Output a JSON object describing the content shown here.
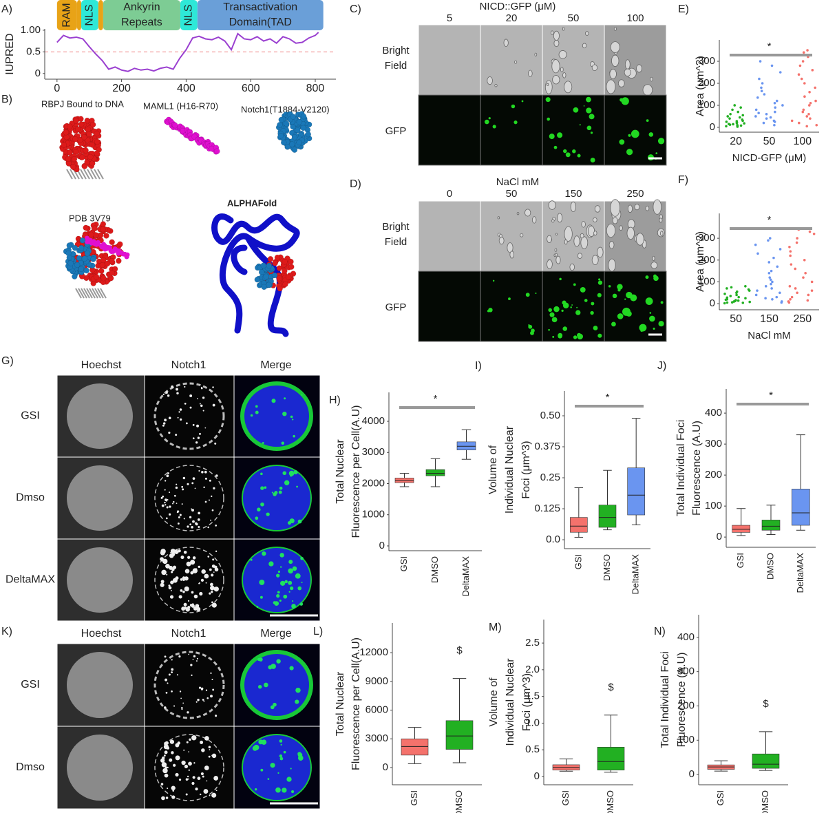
{
  "figure": {
    "panel_labels": [
      "A)",
      "B)",
      "C)",
      "D)",
      "E)",
      "F)",
      "G)",
      "H)",
      "I)",
      "J)",
      "K)",
      "L)",
      "M)",
      "N)"
    ],
    "structures": {
      "rbpj": "RBPJ Bound to DNA",
      "maml1": "MAML1 (H16-R70)",
      "notch1": "Notch1(T1884-V2120)",
      "pdb": "PDB 3V79",
      "alphafold": "ALPHAFold"
    },
    "panel_c": {
      "title": "NICD::GFP (μM)",
      "columns": [
        "5",
        "20",
        "50",
        "100"
      ],
      "rows": [
        [
          "Bright",
          "Field"
        ],
        [
          "GFP"
        ]
      ]
    },
    "panel_d": {
      "title": "NaCl mM",
      "columns": [
        "0",
        "50",
        "150",
        "250"
      ],
      "rows": [
        [
          "Bright",
          "Field"
        ],
        [
          "GFP"
        ]
      ]
    },
    "panel_g": {
      "columns": [
        "Hoechst",
        "Notch1",
        "Merge"
      ],
      "column_colors": [
        "#2233dd",
        "#22bb22",
        "#111111"
      ],
      "rows": [
        "GSI",
        "Dmso",
        "DeltaMAX"
      ]
    },
    "panel_k": {
      "columns": [
        "Hoechst",
        "Notch1",
        "Merge"
      ],
      "column_colors": [
        "#2233dd",
        "#22bb22",
        "#111111"
      ],
      "rows": [
        "GSI",
        "Dmso"
      ]
    }
  },
  "chart_data": [
    {
      "type": "line",
      "ylabel": "IUPRED",
      "color": "#9a3fd0",
      "threshold": 0.5,
      "threshold_color": "#f08080",
      "domains": [
        {
          "name": [
            "RAM"
          ],
          "start": 0,
          "end": 62,
          "color": "#e8a317"
        },
        {
          "start": 62,
          "end": 75,
          "color": "#e8a317"
        },
        {
          "name": [
            "NLS"
          ],
          "start": 75,
          "end": 128,
          "color": "#2ee8d8"
        },
        {
          "start": 128,
          "end": 143,
          "color": "#e8a317"
        },
        {
          "name": [
            "Ankyrin",
            "Repeats"
          ],
          "start": 143,
          "end": 382,
          "color": "#7dcc94"
        },
        {
          "name": [
            "NLS"
          ],
          "start": 382,
          "end": 435,
          "color": "#2ee8d8"
        },
        {
          "name": [
            "Transactivation",
            "Domain(TAD"
          ],
          "start": 435,
          "end": 825,
          "color": "#6a9fd8"
        }
      ],
      "x": [
        0,
        20,
        40,
        60,
        80,
        100,
        120,
        140,
        160,
        180,
        200,
        220,
        240,
        260,
        280,
        300,
        320,
        340,
        360,
        380,
        400,
        420,
        440,
        460,
        480,
        500,
        520,
        540,
        560,
        580,
        600,
        620,
        640,
        660,
        680,
        700,
        720,
        740,
        760,
        780,
        800,
        810
      ],
      "values": [
        0.72,
        0.88,
        0.82,
        0.84,
        0.8,
        0.62,
        0.45,
        0.3,
        0.1,
        0.15,
        0.08,
        0.05,
        0.12,
        0.08,
        0.1,
        0.06,
        0.12,
        0.15,
        0.1,
        0.35,
        0.55,
        0.82,
        0.86,
        0.8,
        0.78,
        0.84,
        0.75,
        0.55,
        0.92,
        0.8,
        0.78,
        0.85,
        0.75,
        0.8,
        0.7,
        0.85,
        0.8,
        0.7,
        0.72,
        0.82,
        0.88,
        0.95
      ],
      "xlim": [
        -38,
        864
      ],
      "xticks": [
        0,
        200,
        400,
        600,
        800
      ],
      "ylim": [
        -0.13,
        1.03
      ],
      "yticks": [
        0,
        0.5,
        {
          "value": 1,
          "label": "1.00"
        }
      ]
    },
    {
      "type": "strip",
      "ylabel": "Area (μm^2)",
      "xlabel": "NICD-GFP (μM)",
      "annotation": "*",
      "categories": [
        "20",
        "50",
        "100"
      ],
      "series": [
        {
          "color": "#22b022",
          "values": [
            3,
            5,
            6,
            8,
            10,
            12,
            14,
            15,
            18,
            20,
            22,
            25,
            28,
            30,
            35,
            40,
            45,
            50,
            55,
            60,
            70,
            80,
            90,
            100
          ]
        },
        {
          "color": "#6a95f0",
          "values": [
            10,
            20,
            25,
            30,
            40,
            45,
            50,
            60,
            65,
            70,
            80,
            90,
            100,
            110,
            120,
            135,
            150,
            165,
            180,
            200,
            220,
            250,
            280,
            300
          ]
        },
        {
          "color": "#f4726c",
          "values": [
            5,
            10,
            20,
            30,
            40,
            50,
            60,
            70,
            80,
            100,
            110,
            120,
            140,
            160,
            180,
            200,
            220,
            240,
            260,
            280,
            300,
            320,
            340,
            350
          ]
        }
      ],
      "ylim": [
        -22,
        397
      ],
      "yticks": [
        0,
        100,
        200,
        300
      ]
    },
    {
      "type": "strip",
      "ylabel": "Area (μm^2)",
      "xlabel": "NaCl mM",
      "annotation": "*",
      "categories": [
        "50",
        "150",
        "250"
      ],
      "series": [
        {
          "color": "#22b022",
          "values": [
            2,
            4,
            5,
            6,
            8,
            10,
            12,
            14,
            16,
            18,
            20,
            25,
            28,
            30,
            35,
            40,
            45,
            50,
            55,
            60,
            65,
            70,
            75,
            80
          ]
        },
        {
          "color": "#6a95f0",
          "values": [
            5,
            10,
            20,
            25,
            30,
            40,
            50,
            60,
            70,
            80,
            90,
            100,
            110,
            120,
            140,
            150,
            170,
            190,
            210,
            230,
            250,
            270,
            290,
            300
          ]
        },
        {
          "color": "#f4726c",
          "values": [
            5,
            10,
            15,
            20,
            30,
            40,
            50,
            60,
            70,
            80,
            100,
            120,
            140,
            160,
            180,
            200,
            220,
            240,
            260,
            280,
            300,
            320,
            330,
            340
          ]
        }
      ],
      "ylim": [
        -28,
        414
      ],
      "yticks": [
        0,
        100,
        200,
        300
      ]
    },
    {
      "type": "box",
      "ylabel": [
        "Total Nuclear",
        "Fluorescence per Cell(A.U)"
      ],
      "annotation": "*",
      "categories": [
        "GSI",
        "DMSO",
        "DeltaMAX"
      ],
      "boxes": [
        {
          "color": "#f4726c",
          "min": 1900,
          "q1": 2030,
          "median": 2100,
          "q3": 2180,
          "max": 2330
        },
        {
          "color": "#22b022",
          "min": 1900,
          "q1": 2250,
          "median": 2330,
          "q3": 2450,
          "max": 2800
        },
        {
          "color": "#6a95f0",
          "min": 2780,
          "q1": 3080,
          "median": 3200,
          "q3": 3340,
          "max": 3730
        }
      ],
      "ylim": [
        -155,
        4928
      ],
      "yticks": [
        0,
        1000,
        2000,
        3000,
        4000
      ]
    },
    {
      "type": "box",
      "ylabel": [
        "Volume of",
        "Individual Nuclear",
        "Foci (μm^3)"
      ],
      "annotation": "*",
      "categories": [
        "GSI",
        "DMSO",
        "DeltaMAX"
      ],
      "boxes": [
        {
          "color": "#f4726c",
          "min": 0.01,
          "q1": 0.03,
          "median": 0.055,
          "q3": 0.09,
          "max": 0.21
        },
        {
          "color": "#22b022",
          "min": 0.04,
          "q1": 0.05,
          "median": 0.09,
          "q3": 0.14,
          "max": 0.28
        },
        {
          "color": "#6a95f0",
          "min": 0.06,
          "q1": 0.1,
          "median": 0.18,
          "q3": 0.29,
          "max": 0.49
        }
      ],
      "ylim": [
        -0.036,
        0.6
      ],
      "yticks": [
        {
          "value": 0,
          "label": "0.0"
        },
        0.125,
        0.25,
        0.375,
        {
          "value": 0.5,
          "label": "0.50"
        }
      ]
    },
    {
      "type": "box",
      "ylabel": [
        "Total Individual Foci",
        "Fluorescence (A.U)"
      ],
      "annotation": "*",
      "categories": [
        "GSI",
        "DMSO",
        "DeltaMAX"
      ],
      "boxes": [
        {
          "color": "#f4726c",
          "min": 5,
          "q1": 15,
          "median": 25,
          "q3": 38,
          "max": 92
        },
        {
          "color": "#22b022",
          "min": 8,
          "q1": 22,
          "median": 35,
          "q3": 55,
          "max": 103
        },
        {
          "color": "#6a95f0",
          "min": 22,
          "q1": 38,
          "median": 78,
          "q3": 155,
          "max": 330
        }
      ],
      "ylim": [
        -33,
        478
      ],
      "yticks": [
        0,
        100,
        200,
        300,
        400
      ]
    },
    {
      "type": "box",
      "ylabel": [
        "Total Nuclear",
        "Fluorescence per Cell(A.U)"
      ],
      "annotation": "$",
      "categories": [
        "GSI",
        "DMSO"
      ],
      "boxes": [
        {
          "color": "#f4726c",
          "min": 400,
          "q1": 1300,
          "median": 2200,
          "q3": 3000,
          "max": 4200
        },
        {
          "color": "#22b022",
          "min": 500,
          "q1": 1900,
          "median": 3300,
          "q3": 4900,
          "max": 9300
        }
      ],
      "ylim": [
        -1800,
        15100
      ],
      "yticks": [
        0,
        3000,
        6000,
        9000,
        12000
      ]
    },
    {
      "type": "box",
      "ylabel": [
        "Volume of",
        "Individual Nuclear",
        "Foci (μm^3)"
      ],
      "annotation": "$",
      "categories": [
        "GSI",
        "DMSO"
      ],
      "boxes": [
        {
          "color": "#f4726c",
          "min": 0.1,
          "q1": 0.12,
          "median": 0.17,
          "q3": 0.22,
          "max": 0.33
        },
        {
          "color": "#22b022",
          "min": 0.08,
          "q1": 0.12,
          "median": 0.28,
          "q3": 0.55,
          "max": 1.15
        }
      ],
      "ylim": [
        -0.155,
        2.94
      ],
      "yticks": [
        0,
        0.5,
        {
          "value": 1,
          "label": "1.0"
        },
        1.5,
        {
          "value": 2,
          "label": "2.0"
        },
        2.5
      ]
    },
    {
      "type": "box",
      "ylabel": [
        "Total Individual Foci",
        "Fluorescence (A.U)"
      ],
      "annotation": "$",
      "categories": [
        "GSI",
        "DMSO"
      ],
      "boxes": [
        {
          "color": "#f4726c",
          "min": 10,
          "q1": 15,
          "median": 22,
          "q3": 28,
          "max": 40
        },
        {
          "color": "#22b022",
          "min": 12,
          "q1": 18,
          "median": 30,
          "q3": 60,
          "max": 125
        }
      ],
      "ylim": [
        -30,
        466
      ],
      "yticks": [
        0,
        100,
        200,
        300,
        400
      ]
    }
  ]
}
